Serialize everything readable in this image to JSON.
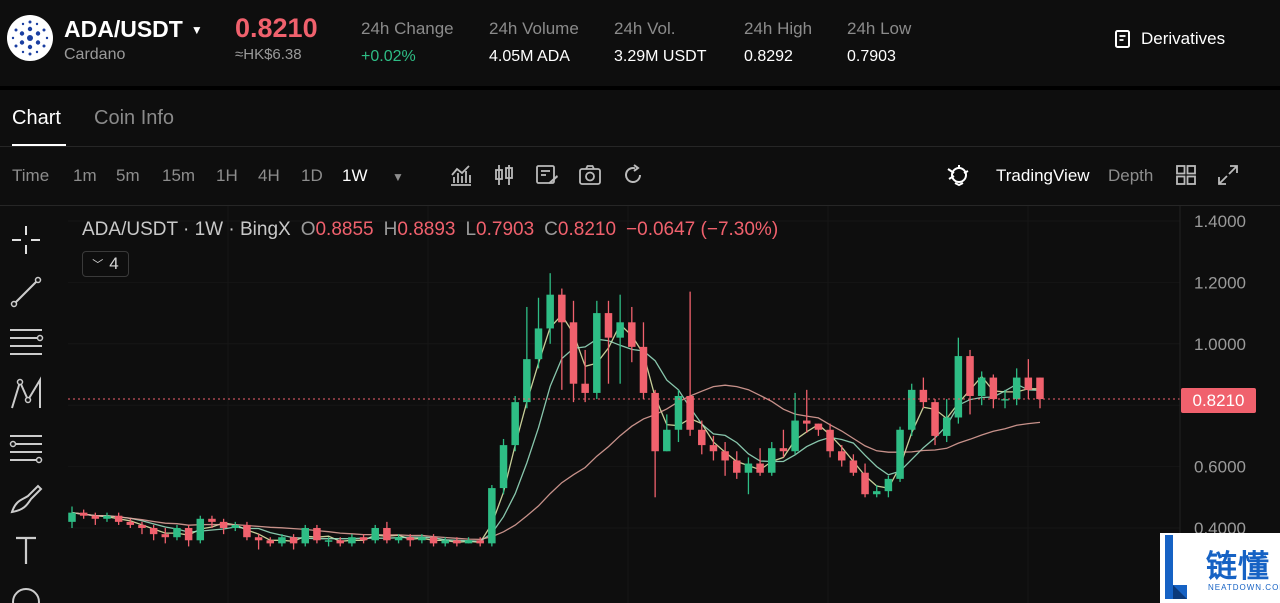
{
  "header": {
    "pair": "ADA/USDT",
    "coin_name": "Cardano",
    "last_price": "0.8210",
    "last_price_hkd": "≈HK$6.38",
    "stats": [
      {
        "label": "24h Change",
        "value": "+0.02%",
        "positive": true
      },
      {
        "label": "24h Volume",
        "value": "4.05M ADA"
      },
      {
        "label": "24h Vol.",
        "value": "3.29M USDT"
      },
      {
        "label": "24h High",
        "value": "0.8292"
      },
      {
        "label": "24h Low",
        "value": "0.7903"
      }
    ],
    "derivatives_label": "Derivatives"
  },
  "tabs": [
    {
      "label": "Chart",
      "active": true
    },
    {
      "label": "Coin Info",
      "active": false
    }
  ],
  "toolbar": {
    "time_label": "Time",
    "intervals": [
      "1m",
      "5m",
      "15m",
      "1H",
      "4H",
      "1D",
      "1W"
    ],
    "active_interval": "1W",
    "icons": [
      "indicators-icon",
      "candle-type-icon",
      "template-icon",
      "camera-icon",
      "reset-icon"
    ],
    "tradingview_label": "TradingView",
    "depth_label": "Depth"
  },
  "legend": {
    "title": "ADA/USDT · 1W · BingX",
    "o_label": "O",
    "o": "0.8855",
    "h_label": "H",
    "h": "0.8893",
    "l_label": "L",
    "l": "0.7903",
    "c_label": "C",
    "c": "0.8210",
    "change": "−0.0647 (−7.30%)",
    "indicator_count": "4"
  },
  "colors": {
    "up": "#2ebd85",
    "down": "#f0616d",
    "ma1": "#e8f0b0",
    "ma2": "#9ee6c8",
    "ma3": "#e8a8a0"
  },
  "chart_data": {
    "type": "candlestick",
    "ylim": [
      0.36,
      1.42
    ],
    "y_ticks": [
      "1.4000",
      "1.2000",
      "1.0000",
      "0.6000",
      "0.4000"
    ],
    "current_price_label": "0.8210",
    "candles": [
      [
        0.42,
        0.45,
        0.4,
        0.47
      ],
      [
        0.45,
        0.44,
        0.43,
        0.46
      ],
      [
        0.44,
        0.43,
        0.41,
        0.45
      ],
      [
        0.43,
        0.44,
        0.42,
        0.45
      ],
      [
        0.44,
        0.42,
        0.41,
        0.45
      ],
      [
        0.42,
        0.41,
        0.4,
        0.43
      ],
      [
        0.41,
        0.4,
        0.38,
        0.42
      ],
      [
        0.4,
        0.38,
        0.36,
        0.41
      ],
      [
        0.38,
        0.37,
        0.35,
        0.4
      ],
      [
        0.37,
        0.4,
        0.36,
        0.41
      ],
      [
        0.4,
        0.36,
        0.34,
        0.41
      ],
      [
        0.36,
        0.43,
        0.35,
        0.44
      ],
      [
        0.43,
        0.42,
        0.4,
        0.44
      ],
      [
        0.42,
        0.4,
        0.38,
        0.43
      ],
      [
        0.4,
        0.41,
        0.39,
        0.42
      ],
      [
        0.41,
        0.37,
        0.36,
        0.42
      ],
      [
        0.37,
        0.36,
        0.33,
        0.38
      ],
      [
        0.36,
        0.35,
        0.34,
        0.37
      ],
      [
        0.35,
        0.37,
        0.34,
        0.38
      ],
      [
        0.37,
        0.35,
        0.33,
        0.38
      ],
      [
        0.35,
        0.4,
        0.34,
        0.41
      ],
      [
        0.4,
        0.36,
        0.35,
        0.41
      ],
      [
        0.36,
        0.36,
        0.34,
        0.37
      ],
      [
        0.36,
        0.35,
        0.34,
        0.37
      ],
      [
        0.35,
        0.37,
        0.34,
        0.38
      ],
      [
        0.37,
        0.36,
        0.35,
        0.38
      ],
      [
        0.36,
        0.4,
        0.35,
        0.41
      ],
      [
        0.4,
        0.36,
        0.35,
        0.42
      ],
      [
        0.36,
        0.37,
        0.35,
        0.38
      ],
      [
        0.37,
        0.36,
        0.34,
        0.38
      ],
      [
        0.36,
        0.37,
        0.35,
        0.38
      ],
      [
        0.37,
        0.35,
        0.34,
        0.38
      ],
      [
        0.35,
        0.36,
        0.34,
        0.37
      ],
      [
        0.36,
        0.35,
        0.34,
        0.37
      ],
      [
        0.35,
        0.36,
        0.35,
        0.37
      ],
      [
        0.36,
        0.35,
        0.34,
        0.37
      ],
      [
        0.35,
        0.53,
        0.34,
        0.54
      ],
      [
        0.53,
        0.67,
        0.51,
        0.69
      ],
      [
        0.67,
        0.81,
        0.65,
        0.83
      ],
      [
        0.81,
        0.95,
        0.79,
        1.12
      ],
      [
        0.95,
        1.05,
        0.92,
        1.15
      ],
      [
        1.05,
        1.16,
        1.0,
        1.23
      ],
      [
        1.16,
        1.07,
        0.85,
        1.18
      ],
      [
        1.07,
        0.87,
        0.81,
        1.14
      ],
      [
        0.87,
        0.84,
        0.81,
        0.98
      ],
      [
        0.84,
        1.1,
        0.82,
        1.14
      ],
      [
        1.1,
        1.02,
        0.87,
        1.14
      ],
      [
        1.02,
        1.07,
        0.87,
        1.16
      ],
      [
        1.07,
        0.99,
        0.94,
        1.12
      ],
      [
        0.99,
        0.84,
        0.82,
        1.07
      ],
      [
        0.84,
        0.65,
        0.5,
        0.85
      ],
      [
        0.65,
        0.72,
        0.65,
        0.77
      ],
      [
        0.72,
        0.83,
        0.68,
        0.85
      ],
      [
        0.83,
        0.72,
        0.7,
        1.17
      ],
      [
        0.72,
        0.67,
        0.64,
        0.75
      ],
      [
        0.67,
        0.65,
        0.62,
        0.7
      ],
      [
        0.65,
        0.62,
        0.57,
        0.68
      ],
      [
        0.62,
        0.58,
        0.56,
        0.65
      ],
      [
        0.58,
        0.61,
        0.51,
        0.63
      ],
      [
        0.61,
        0.58,
        0.57,
        0.66
      ],
      [
        0.58,
        0.66,
        0.57,
        0.68
      ],
      [
        0.66,
        0.65,
        0.63,
        0.72
      ],
      [
        0.65,
        0.75,
        0.64,
        0.84
      ],
      [
        0.75,
        0.74,
        0.71,
        0.85
      ],
      [
        0.74,
        0.72,
        0.7,
        0.74
      ],
      [
        0.72,
        0.65,
        0.63,
        0.74
      ],
      [
        0.65,
        0.62,
        0.6,
        0.67
      ],
      [
        0.62,
        0.58,
        0.57,
        0.64
      ],
      [
        0.58,
        0.51,
        0.5,
        0.61
      ],
      [
        0.51,
        0.52,
        0.5,
        0.54
      ],
      [
        0.52,
        0.56,
        0.5,
        0.57
      ],
      [
        0.56,
        0.72,
        0.55,
        0.73
      ],
      [
        0.72,
        0.85,
        0.7,
        0.87
      ],
      [
        0.85,
        0.81,
        0.79,
        0.89
      ],
      [
        0.81,
        0.7,
        0.67,
        0.82
      ],
      [
        0.7,
        0.76,
        0.68,
        0.82
      ],
      [
        0.76,
        0.96,
        0.74,
        1.02
      ],
      [
        0.96,
        0.83,
        0.77,
        0.98
      ],
      [
        0.83,
        0.89,
        0.8,
        0.91
      ],
      [
        0.89,
        0.82,
        0.79,
        0.9
      ],
      [
        0.82,
        0.82,
        0.79,
        0.85
      ],
      [
        0.82,
        0.89,
        0.8,
        0.92
      ],
      [
        0.89,
        0.85,
        0.82,
        0.95
      ],
      [
        0.89,
        0.82,
        0.79,
        0.89
      ]
    ]
  }
}
